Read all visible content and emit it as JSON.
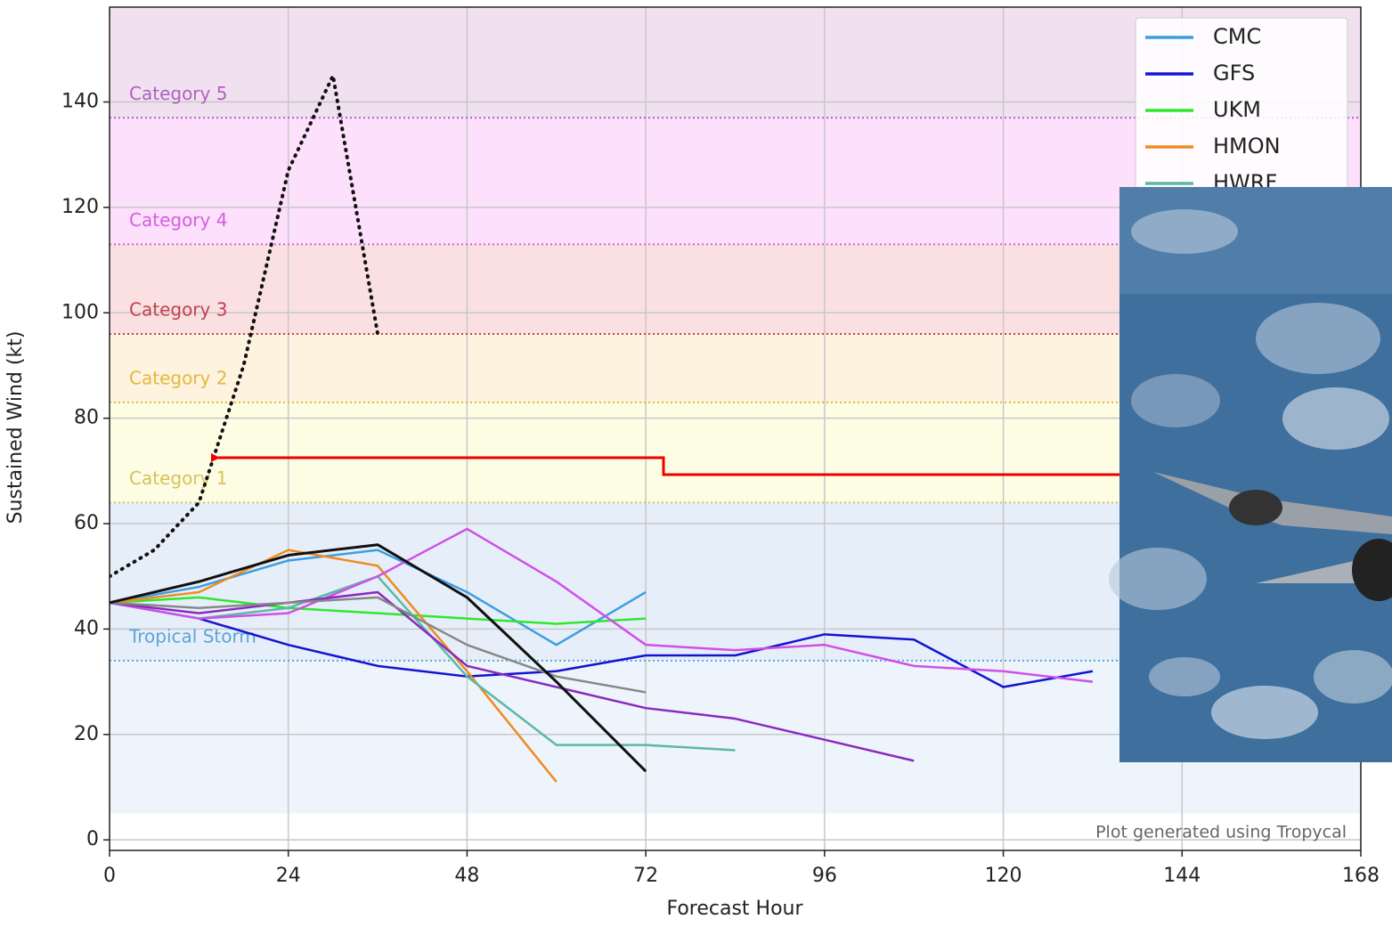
{
  "chart_data": {
    "type": "line",
    "xlabel": "Forecast Hour",
    "ylabel": "Sustained Wind (kt)",
    "annotation": "Plot generated using Tropycal",
    "xlim": [
      0,
      168
    ],
    "xticks": [
      0,
      24,
      48,
      72,
      96,
      120,
      144,
      168
    ],
    "ylim": [
      -2,
      158
    ],
    "yticks": [
      0,
      20,
      40,
      60,
      80,
      100,
      120,
      140
    ],
    "grid": true,
    "legend": "upper right",
    "bands": [
      {
        "from": 5,
        "to": 34,
        "color": "#edf4fb"
      },
      {
        "label": "Tropical Storm",
        "from": 34,
        "to": 64,
        "color": "#e6eff9",
        "text_color": "#5aa6d6"
      },
      {
        "label": "Category 1",
        "from": 64,
        "to": 83,
        "color": "#fdfde4",
        "text_color": "#d8c25a"
      },
      {
        "label": "Category 2",
        "from": 83,
        "to": 96,
        "color": "#fdf3df",
        "text_color": "#e4b83e"
      },
      {
        "label": "Category 3",
        "from": 96,
        "to": 113,
        "color": "#fbe0e1",
        "text_color": "#c24050"
      },
      {
        "label": "Category 4",
        "from": 113,
        "to": 137,
        "color": "#fde0fb",
        "text_color": "#d25ee2"
      },
      {
        "label": "Category 5",
        "from": 137,
        "to": 158,
        "color": "#f1e1f0",
        "text_color": "#b060c0"
      }
    ],
    "series": [
      {
        "name": "CMC",
        "color": "#3c9ee0",
        "x": [
          0,
          12,
          24,
          36,
          48,
          60,
          72
        ],
        "values": [
          45,
          48,
          53,
          55,
          47,
          37,
          47
        ]
      },
      {
        "name": "GFS",
        "color": "#1414d0",
        "x": [
          0,
          12,
          24,
          36,
          48,
          60,
          72,
          84,
          96,
          108,
          120,
          132
        ],
        "values": [
          45,
          42,
          37,
          33,
          31,
          32,
          35,
          35,
          39,
          38,
          29,
          32
        ]
      },
      {
        "name": "UKM",
        "color": "#2ee82e",
        "x": [
          0,
          12,
          24,
          36,
          48,
          60,
          72
        ],
        "values": [
          45,
          46,
          44,
          43,
          42,
          41,
          42
        ]
      },
      {
        "name": "HMON",
        "color": "#f08c20",
        "x": [
          0,
          12,
          24,
          36,
          48,
          60
        ],
        "values": [
          45,
          47,
          55,
          52,
          32,
          11
        ]
      },
      {
        "name": "HWRF",
        "color": "#5cb8a6",
        "x": [
          0,
          12,
          24,
          36,
          48,
          60,
          72,
          84
        ],
        "values": [
          45,
          42,
          44,
          50,
          31,
          18,
          18,
          17
        ]
      },
      {
        "color": "#d050e8",
        "x": [
          0,
          12,
          24,
          36,
          48,
          60,
          72,
          84,
          96,
          108,
          120,
          132
        ],
        "values": [
          45,
          42,
          43,
          50,
          59,
          49,
          37,
          36,
          37,
          33,
          32,
          30
        ]
      },
      {
        "color": "#8a2ac0",
        "x": [
          0,
          12,
          24,
          36,
          48,
          60,
          72,
          84,
          96,
          108
        ],
        "values": [
          45,
          43,
          45,
          47,
          33,
          29,
          25,
          23,
          19,
          15
        ]
      },
      {
        "color": "#888888",
        "x": [
          0,
          12,
          24,
          36,
          48,
          60,
          72
        ],
        "values": [
          45,
          44,
          45,
          46,
          37,
          31,
          28
        ]
      },
      {
        "color": "#111111",
        "width": 3,
        "x": [
          0,
          12,
          24,
          36,
          48,
          60,
          72
        ],
        "values": [
          45,
          49,
          54,
          56,
          46,
          30,
          13
        ]
      },
      {
        "color": "#111111",
        "style": "dotted",
        "width": 4,
        "x": [
          0,
          6,
          12,
          18,
          24,
          30,
          36
        ],
        "values": [
          50,
          55,
          64,
          90,
          127,
          145,
          96
        ]
      }
    ]
  }
}
